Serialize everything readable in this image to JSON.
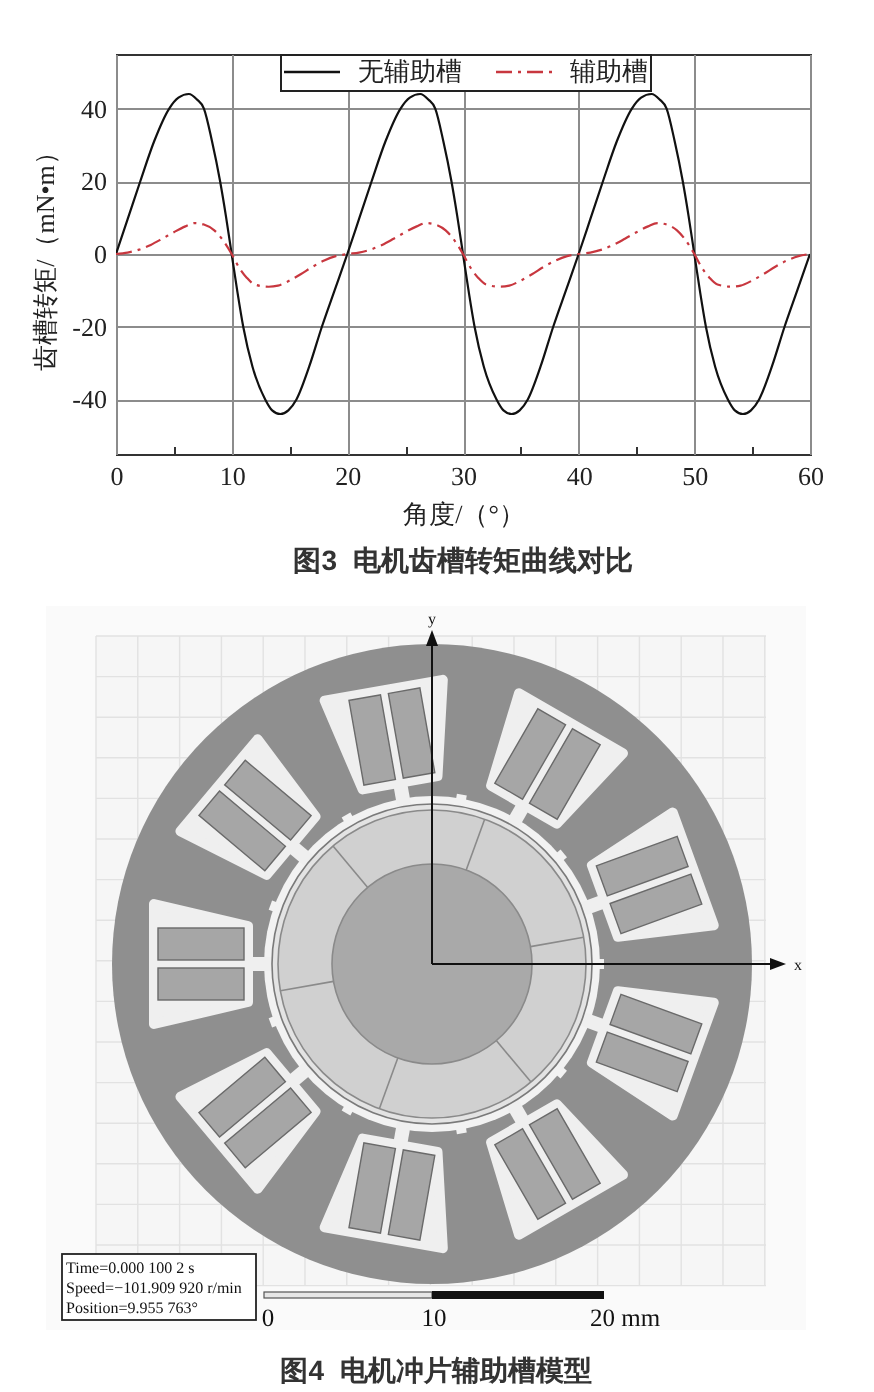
{
  "chart_data": [
    {
      "type": "line",
      "title": "图3  电机齿槽转矩曲线对比",
      "xlabel": "角度/（°）",
      "ylabel": "齿槽转矩/（mN•m）",
      "xlim": [
        0,
        60
      ],
      "ylim": [
        -55,
        55
      ],
      "xticks": [
        0,
        {
          "value": 5,
          "label": null
        },
        10,
        {
          "value": 15,
          "label": null
        },
        20,
        {
          "value": 25,
          "label": null
        },
        30,
        {
          "value": 35,
          "label": null
        },
        40,
        {
          "value": 45,
          "label": null
        },
        50,
        {
          "value": 55,
          "label": null
        },
        60
      ],
      "yticks": [
        -40,
        -20,
        0,
        20,
        40
      ],
      "grid": true,
      "legend": "top",
      "series": [
        {
          "name": "无辅助槽",
          "color": "#111111",
          "line_style": "solid",
          "x": [
            0,
            1,
            2.1,
            3.3,
            4.6,
            5.4,
            6.3,
            7,
            7.6,
            8.3,
            9,
            9.5,
            10,
            10.5,
            11,
            11.8,
            12.9,
            13.5,
            14.2,
            14.9,
            15.6,
            16.7,
            17.8,
            18.9,
            20,
            21,
            22.1,
            23.3,
            24.6,
            25.4,
            26.3,
            27,
            27.6,
            28.3,
            29,
            29.5,
            30,
            30.5,
            31,
            31.8,
            32.9,
            33.5,
            34.2,
            34.9,
            35.6,
            36.7,
            37.8,
            38.9,
            40,
            41,
            42.1,
            43.3,
            44.6,
            45.4,
            46.3,
            47,
            47.6,
            48.3,
            49,
            49.5,
            50,
            50.5,
            51,
            51.8,
            52.9,
            53.5,
            54.2,
            54.9,
            55.6,
            56.7,
            57.8,
            58.9,
            60
          ],
          "values": [
            0,
            9.5,
            20,
            31,
            40,
            43,
            44,
            42.5,
            40,
            31,
            20,
            10.5,
            0,
            -10.5,
            -20,
            -31,
            -40,
            -43,
            -44,
            -43,
            -40,
            -31,
            -20,
            -10,
            0,
            9.5,
            20,
            31,
            40,
            43,
            44,
            42.5,
            40,
            31,
            20,
            10.5,
            0,
            -10.5,
            -20,
            -31,
            -40,
            -43,
            -44,
            -43,
            -40,
            -31,
            -20,
            -10,
            0,
            9.5,
            20,
            31,
            40,
            43,
            44,
            42.5,
            40,
            31,
            20,
            10.5,
            0,
            -10.5,
            -20,
            -31,
            -40,
            -43,
            -44,
            -43,
            -40,
            -31,
            -20,
            -10,
            0
          ]
        },
        {
          "name": "辅助槽",
          "color": "#c8373f",
          "line_style": "dashdot",
          "x": [
            0,
            1,
            2,
            3,
            4,
            5,
            6,
            6.8,
            7.6,
            8.5,
            9.2,
            10,
            10.6,
            11.3,
            12,
            13.2,
            14,
            15,
            16,
            17,
            18,
            19,
            20,
            21,
            22,
            23,
            24,
            25,
            26,
            26.8,
            27.6,
            28.5,
            29.2,
            30,
            30.6,
            31.3,
            32,
            33.2,
            34,
            35,
            36,
            37,
            38,
            39,
            40,
            41,
            42,
            43,
            44,
            45,
            46,
            46.8,
            47.6,
            48.5,
            49.2,
            50,
            50.6,
            51.3,
            52,
            53.2,
            54,
            55,
            56,
            57,
            58,
            59,
            60
          ],
          "values": [
            0,
            0.4,
            1.2,
            2.5,
            4.2,
            6,
            7.6,
            8.5,
            8.1,
            6.5,
            4,
            0,
            -3.5,
            -6.5,
            -8.4,
            -9,
            -8.7,
            -7.3,
            -5.5,
            -3.5,
            -1.8,
            -0.6,
            0,
            0.4,
            1.2,
            2.5,
            4.2,
            6,
            7.6,
            8.5,
            8.1,
            6.5,
            4,
            0,
            -3.5,
            -6.5,
            -8.4,
            -9,
            -8.7,
            -7.3,
            -5.5,
            -3.5,
            -1.8,
            -0.6,
            0,
            0.4,
            1.2,
            2.5,
            4.2,
            6,
            7.6,
            8.5,
            8.1,
            6.5,
            4,
            0,
            -3.5,
            -6.5,
            -8.4,
            -9,
            -8.7,
            -7.3,
            -5.5,
            -3.5,
            -1.8,
            -0.6,
            0
          ]
        }
      ]
    },
    {
      "type": "other",
      "title": "图4  电机冲片辅助槽模型",
      "annotations": [
        "y",
        "x",
        "Time=0.000 100 2 s",
        "Speed=−101.909 920 r/min",
        "Position=9.955 763°",
        "0",
        "10",
        "20 mm"
      ]
    }
  ]
}
